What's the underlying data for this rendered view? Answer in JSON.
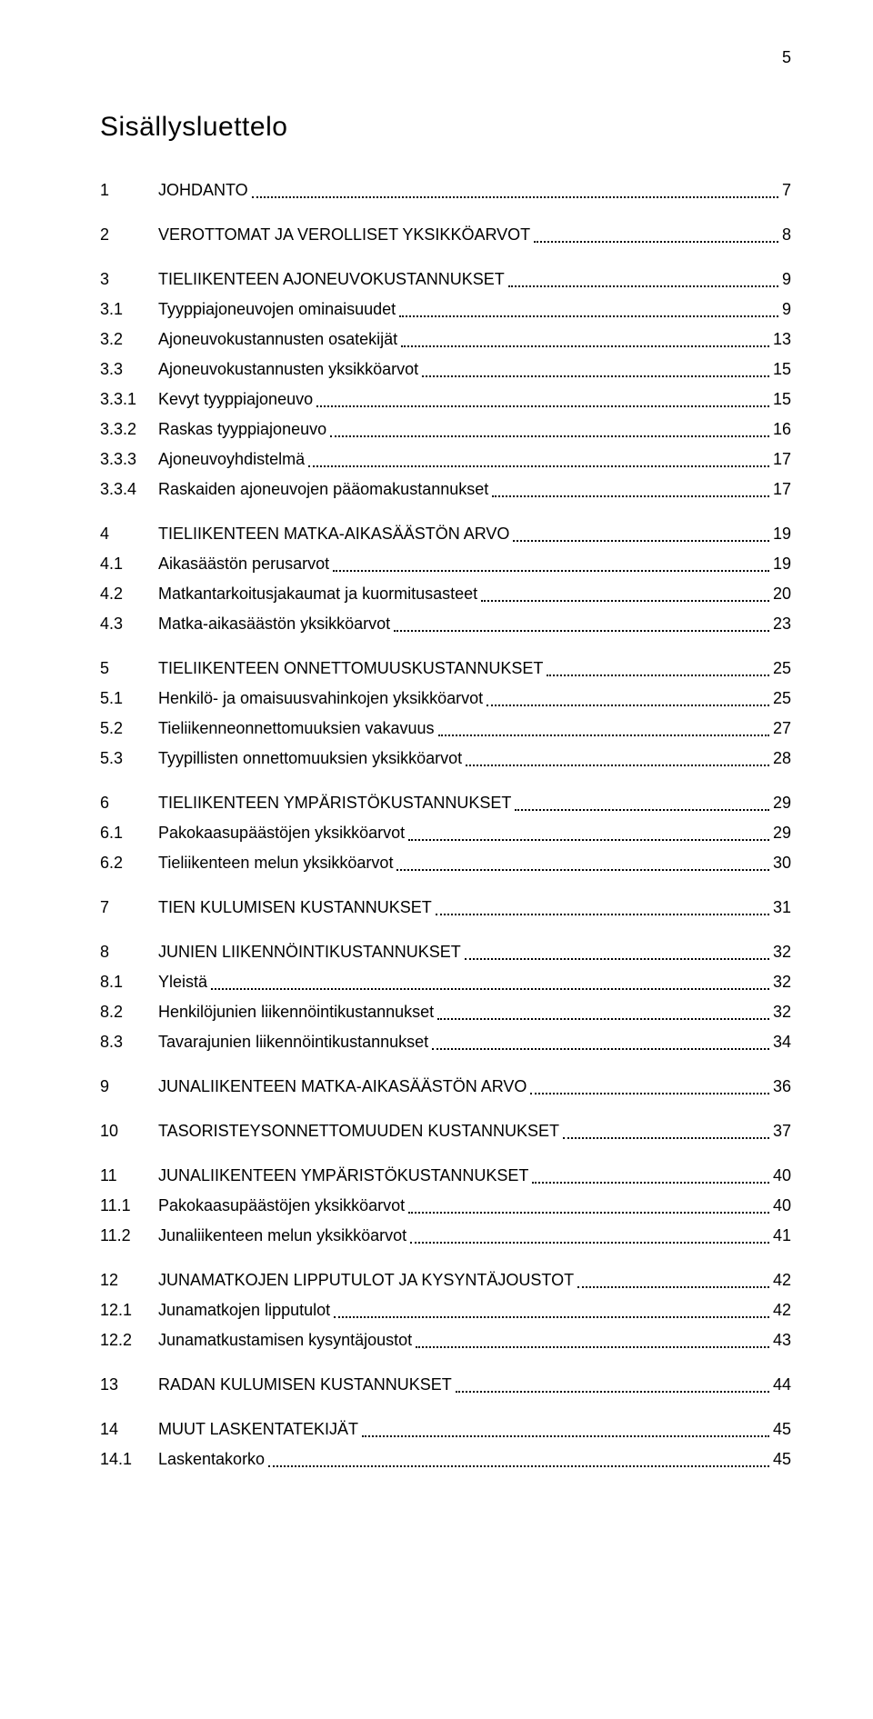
{
  "page_number": "5",
  "title": "Sisällysluettelo",
  "toc_groups": [
    [
      {
        "num": "1",
        "text": "JOHDANTO",
        "page": "7"
      }
    ],
    [
      {
        "num": "2",
        "text": "VEROTTOMAT JA VEROLLISET YKSIKKÖARVOT",
        "page": "8"
      }
    ],
    [
      {
        "num": "3",
        "text": "TIELIIKENTEEN AJONEUVOKUSTANNUKSET",
        "page": "9"
      },
      {
        "num": "3.1",
        "text": "Tyyppiajoneuvojen ominaisuudet",
        "page": "9"
      },
      {
        "num": "3.2",
        "text": "Ajoneuvokustannusten osatekijät",
        "page": "13"
      },
      {
        "num": "3.3",
        "text": "Ajoneuvokustannusten yksikköarvot",
        "page": "15"
      },
      {
        "num": "3.3.1",
        "text": "Kevyt tyyppiajoneuvo",
        "page": "15"
      },
      {
        "num": "3.3.2",
        "text": "Raskas tyyppiajoneuvo",
        "page": "16"
      },
      {
        "num": "3.3.3",
        "text": "Ajoneuvoyhdistelmä",
        "page": "17"
      },
      {
        "num": "3.3.4",
        "text": "Raskaiden ajoneuvojen pääomakustannukset",
        "page": "17"
      }
    ],
    [
      {
        "num": "4",
        "text": "TIELIIKENTEEN MATKA-AIKASÄÄSTÖN ARVO",
        "page": "19"
      },
      {
        "num": "4.1",
        "text": "Aikasäästön perusarvot",
        "page": "19"
      },
      {
        "num": "4.2",
        "text": "Matkantarkoitusjakaumat ja kuormitusasteet",
        "page": "20"
      },
      {
        "num": "4.3",
        "text": "Matka-aikasäästön yksikköarvot",
        "page": "23"
      }
    ],
    [
      {
        "num": "5",
        "text": "TIELIIKENTEEN ONNETTOMUUSKUSTANNUKSET",
        "page": "25"
      },
      {
        "num": "5.1",
        "text": "Henkilö- ja omaisuusvahinkojen yksikköarvot",
        "page": "25"
      },
      {
        "num": "5.2",
        "text": "Tieliikenneonnettomuuksien vakavuus",
        "page": "27"
      },
      {
        "num": "5.3",
        "text": "Tyypillisten onnettomuuksien yksikköarvot",
        "page": "28"
      }
    ],
    [
      {
        "num": "6",
        "text": "TIELIIKENTEEN YMPÄRISTÖKUSTANNUKSET",
        "page": "29"
      },
      {
        "num": "6.1",
        "text": "Pakokaasupäästöjen yksikköarvot",
        "page": "29"
      },
      {
        "num": "6.2",
        "text": "Tieliikenteen melun yksikköarvot",
        "page": "30"
      }
    ],
    [
      {
        "num": "7",
        "text": "TIEN KULUMISEN KUSTANNUKSET",
        "page": "31"
      }
    ],
    [
      {
        "num": "8",
        "text": "JUNIEN LIIKENNÖINTIKUSTANNUKSET",
        "page": "32"
      },
      {
        "num": "8.1",
        "text": "Yleistä",
        "page": "32"
      },
      {
        "num": "8.2",
        "text": "Henkilöjunien liikennöintikustannukset",
        "page": "32"
      },
      {
        "num": "8.3",
        "text": "Tavarajunien liikennöintikustannukset",
        "page": "34"
      }
    ],
    [
      {
        "num": "9",
        "text": "JUNALIIKENTEEN MATKA-AIKASÄÄSTÖN ARVO",
        "page": "36"
      }
    ],
    [
      {
        "num": "10",
        "text": "TASORISTEYSONNETTOMUUDEN KUSTANNUKSET",
        "page": "37"
      }
    ],
    [
      {
        "num": "11",
        "text": "JUNALIIKENTEEN YMPÄRISTÖKUSTANNUKSET",
        "page": "40"
      },
      {
        "num": "11.1",
        "text": "Pakokaasupäästöjen yksikköarvot",
        "page": "40"
      },
      {
        "num": "11.2",
        "text": "Junaliikenteen melun yksikköarvot",
        "page": "41"
      }
    ],
    [
      {
        "num": "12",
        "text": "JUNAMATKOJEN LIPPUTULOT JA KYSYNTÄJOUSTOT",
        "page": "42"
      },
      {
        "num": "12.1",
        "text": "Junamatkojen lipputulot",
        "page": "42"
      },
      {
        "num": "12.2",
        "text": "Junamatkustamisen kysyntäjoustot",
        "page": "43"
      }
    ],
    [
      {
        "num": "13",
        "text": "RADAN KULUMISEN KUSTANNUKSET",
        "page": "44"
      }
    ],
    [
      {
        "num": "14",
        "text": "MUUT LASKENTATEKIJÄT",
        "page": "45"
      },
      {
        "num": "14.1",
        "text": "Laskentakorko",
        "page": "45"
      }
    ]
  ]
}
